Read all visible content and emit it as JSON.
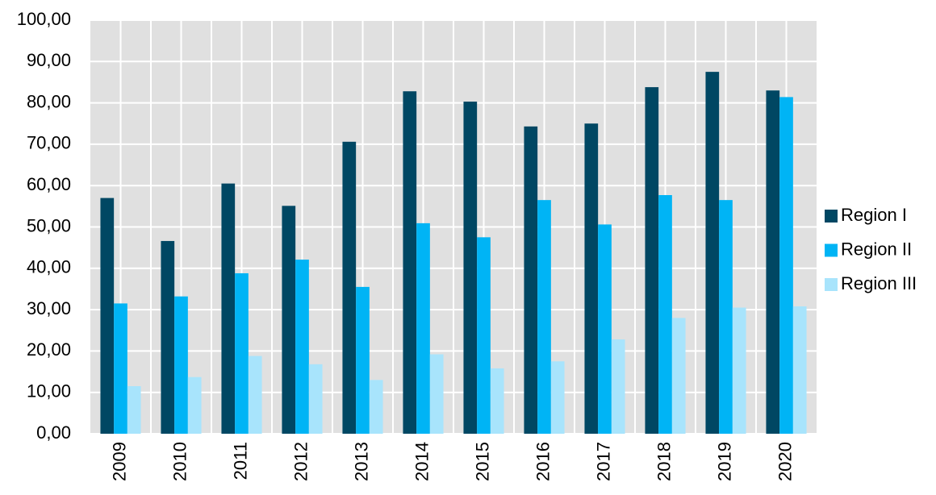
{
  "chart_data": {
    "type": "bar",
    "categories": [
      "2009",
      "2010",
      "2011",
      "2012",
      "2013",
      "2014",
      "2015",
      "2016",
      "2017",
      "2018",
      "2019",
      "2020"
    ],
    "series": [
      {
        "name": "Region I",
        "color": "#004763",
        "values": [
          57.0,
          46.6,
          60.5,
          55.1,
          70.6,
          82.8,
          80.3,
          74.3,
          75.0,
          83.8,
          87.5,
          83.0
        ]
      },
      {
        "name": "Region II",
        "color": "#00b4f5",
        "values": [
          31.5,
          33.2,
          38.8,
          42.1,
          35.5,
          50.9,
          47.5,
          56.5,
          50.6,
          57.7,
          56.5,
          81.4
        ]
      },
      {
        "name": "Region III",
        "color": "#a8e4fc",
        "values": [
          11.5,
          13.7,
          18.8,
          16.8,
          13.0,
          19.2,
          15.8,
          17.5,
          22.8,
          28.0,
          30.5,
          30.8
        ]
      }
    ],
    "ylim": [
      0,
      100
    ],
    "yticks": [
      {
        "value": 0,
        "label": "0,00"
      },
      {
        "value": 10,
        "label": "10,00"
      },
      {
        "value": 20,
        "label": "20,00"
      },
      {
        "value": 30,
        "label": "30,00"
      },
      {
        "value": 40,
        "label": "40,00"
      },
      {
        "value": 50,
        "label": "50,00"
      },
      {
        "value": 60,
        "label": "60,00"
      },
      {
        "value": 70,
        "label": "70,00"
      },
      {
        "value": 80,
        "label": "80,00"
      },
      {
        "value": 90,
        "label": "90,00"
      },
      {
        "value": 100,
        "label": "100,00"
      }
    ],
    "grid": true,
    "legend": "right"
  }
}
